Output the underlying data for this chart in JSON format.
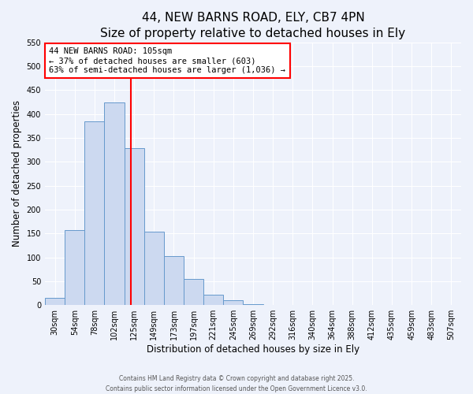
{
  "title_line1": "44, NEW BARNS ROAD, ELY, CB7 4PN",
  "title_line2": "Size of property relative to detached houses in Ely",
  "xlabel": "Distribution of detached houses by size in Ely",
  "ylabel": "Number of detached properties",
  "bar_labels": [
    "30sqm",
    "54sqm",
    "78sqm",
    "102sqm",
    "125sqm",
    "149sqm",
    "173sqm",
    "197sqm",
    "221sqm",
    "245sqm",
    "269sqm",
    "292sqm",
    "316sqm",
    "340sqm",
    "364sqm",
    "388sqm",
    "412sqm",
    "435sqm",
    "459sqm",
    "483sqm",
    "507sqm"
  ],
  "bar_values": [
    15,
    157,
    385,
    425,
    328,
    153,
    102,
    55,
    22,
    10,
    2,
    1,
    0,
    0,
    0,
    0,
    0,
    0,
    0,
    0,
    0
  ],
  "bar_width": 1.0,
  "bar_color": "#ccd9f0",
  "bar_edge_color": "#6699cc",
  "ylim": [
    0,
    550
  ],
  "yticks": [
    0,
    50,
    100,
    150,
    200,
    250,
    300,
    350,
    400,
    450,
    500,
    550
  ],
  "vline_x": 3.85,
  "vline_color": "red",
  "annotation_title": "44 NEW BARNS ROAD: 105sqm",
  "annotation_line1": "← 37% of detached houses are smaller (603)",
  "annotation_line2": "63% of semi-detached houses are larger (1,036) →",
  "annotation_box_color": "white",
  "annotation_box_edge": "red",
  "footer1": "Contains HM Land Registry data © Crown copyright and database right 2025.",
  "footer2": "Contains public sector information licensed under the Open Government Licence v3.0.",
  "bg_color": "#eef2fb",
  "grid_color": "white",
  "title_fontsize": 11,
  "axis_label_fontsize": 8.5,
  "tick_fontsize": 7,
  "annot_fontsize": 7.5
}
